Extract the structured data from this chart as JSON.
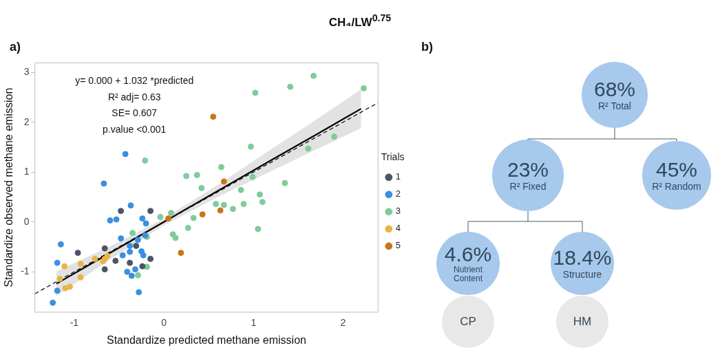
{
  "chart_data": [
    {
      "type": "scatter",
      "title": "CH₄/LW$^{0.75}$",
      "xlabel": "Standardize predicted methane emission",
      "ylabel": "Standardize observed methane emission",
      "legend_title": "Trials",
      "legend": "right",
      "marker": "circle",
      "grid": false,
      "xlim": [
        -1.44,
        2.39
      ],
      "xticks": [
        -1,
        0,
        1,
        2
      ],
      "ylim": [
        -1.81,
        3.19
      ],
      "yticks": [
        -1,
        0,
        1,
        2,
        3
      ],
      "annotations": [
        "a)",
        "y= 0.000 + 1.032 *predicted",
        "R² adj= 0.63",
        "SE= 0.607",
        "p.value <0.001"
      ],
      "series": [
        {
          "name": "1",
          "type": "scatter",
          "color": "#4a5568",
          "x": [
            -0.96,
            -0.66,
            -0.66,
            -0.54,
            -0.48,
            -0.38,
            -0.31,
            -0.24,
            -0.15,
            -0.15
          ],
          "values": [
            -0.62,
            -0.53,
            -0.95,
            -0.78,
            0.22,
            -0.82,
            -0.48,
            -0.89,
            0.22,
            -0.74
          ]
        },
        {
          "name": "2",
          "type": "scatter",
          "color": "#3b8fe0",
          "x": [
            -0.67,
            -1.15,
            -1.19,
            -1.19,
            -1.24,
            -0.6,
            -0.53,
            -0.37,
            -0.24,
            -0.2,
            -0.48,
            -0.38,
            -0.38,
            -0.46,
            -0.29,
            -0.25,
            -0.23,
            -0.41,
            -0.36,
            -0.32,
            -0.28,
            -0.21,
            -0.43
          ],
          "values": [
            0.77,
            -0.45,
            -0.82,
            -1.38,
            -1.62,
            0.03,
            0.05,
            0.33,
            0.07,
            -0.03,
            -0.33,
            -0.48,
            -0.6,
            -0.67,
            -0.36,
            -0.59,
            -0.67,
            -1.0,
            -1.08,
            -0.95,
            -1.41,
            -0.27,
            1.36
          ]
        },
        {
          "name": "3",
          "type": "scatter",
          "color": "#7fcb9b",
          "x": [
            -0.21,
            0.25,
            0.37,
            0.42,
            -0.35,
            -0.19,
            -0.19,
            -0.29,
            -0.04,
            0.08,
            0.1,
            0.13,
            0.27,
            0.33,
            1.67,
            1.41,
            1.02,
            2.23,
            0.64,
            0.97,
            1.9,
            1.61,
            0.99,
            1.35,
            0.86,
            1.07,
            1.1,
            0.89,
            0.58,
            0.67,
            0.77,
            1.05
          ],
          "values": [
            1.23,
            0.92,
            0.94,
            0.68,
            -0.22,
            -0.3,
            -0.9,
            -1.07,
            0.1,
            0.18,
            -0.25,
            -0.32,
            -0.12,
            0.08,
            2.93,
            2.71,
            2.59,
            2.68,
            1.1,
            1.51,
            1.71,
            1.47,
            0.9,
            0.78,
            0.64,
            0.55,
            0.4,
            0.36,
            0.36,
            0.34,
            0.26,
            -0.14
          ]
        },
        {
          "name": "4",
          "type": "scatter",
          "color": "#e8b444",
          "x": [
            -1.11,
            -1.16,
            -1.1,
            -1.05,
            -0.93,
            -0.93,
            -0.77,
            -0.68,
            -0.66,
            -0.63
          ],
          "values": [
            -0.89,
            -1.14,
            -1.33,
            -1.3,
            -0.84,
            -1.11,
            -0.74,
            -0.79,
            -0.74,
            -0.68
          ]
        },
        {
          "name": "5",
          "type": "scatter",
          "color": "#c8761a",
          "x": [
            0.55,
            0.43,
            0.19,
            0.63,
            0.05,
            0.67
          ],
          "values": [
            2.11,
            0.15,
            -0.62,
            0.23,
            0.07,
            0.81
          ]
        },
        {
          "type": "line",
          "color": "#000000",
          "marker": "none",
          "x": [
            -1.2,
            -0.6,
            0,
            0.6,
            1.2,
            1.7,
            2.2
          ],
          "values": [
            -1.24,
            -0.62,
            0,
            0.62,
            1.24,
            1.75,
            2.27
          ],
          "lower": [
            -1.49,
            -0.75,
            -0.07,
            0.5,
            1.02,
            1.45,
            1.88
          ],
          "upper": [
            -0.99,
            -0.49,
            0.07,
            0.74,
            1.46,
            2.05,
            2.66
          ]
        },
        {
          "type": "line",
          "color": "#000000",
          "line_style": "dashed",
          "marker": "none",
          "x": [
            -1.44,
            2.39
          ],
          "values": [
            -1.44,
            2.39
          ]
        }
      ]
    },
    {
      "type": "other",
      "title": "b)",
      "annotations": [
        "68%",
        "R² Total",
        "23%",
        "R² Fixed",
        "45%",
        "R² Random",
        "4.6%",
        "Nutrient Content",
        "18.4%",
        "Structure",
        "CP",
        "HM"
      ]
    }
  ]
}
